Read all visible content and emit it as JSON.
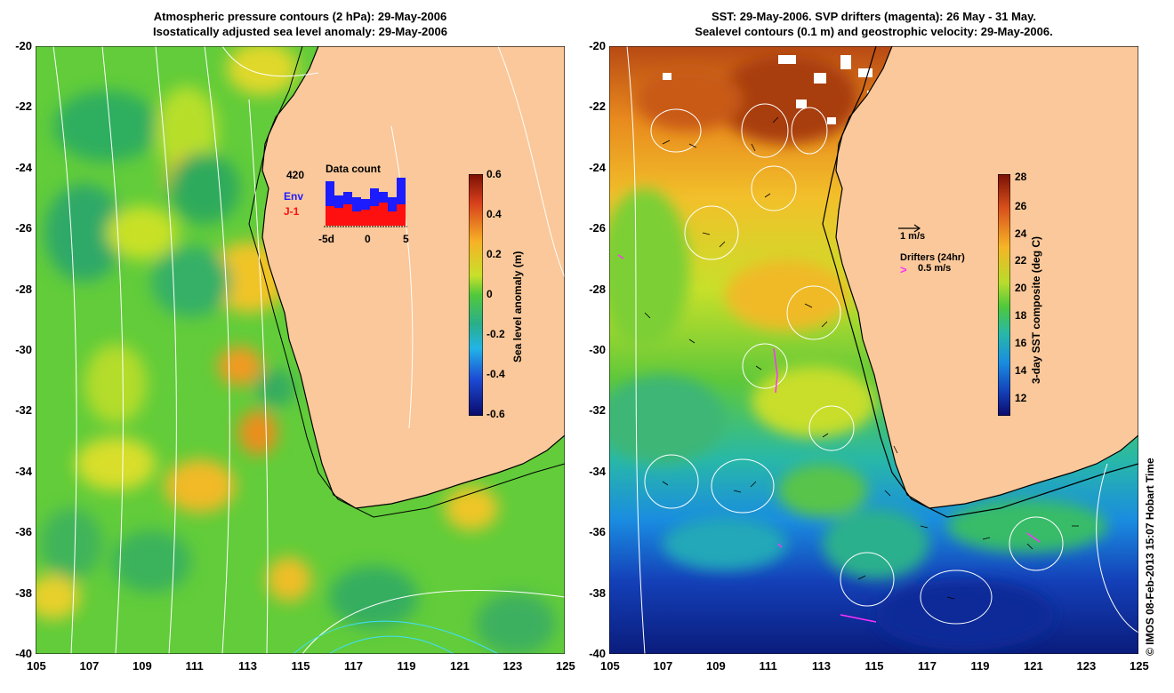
{
  "left_panel": {
    "title_line1": "Atmospheric pressure contours (2 hPa): 29-May-2006",
    "title_line2": "Isostatically adjusted sea level anomaly: 29-May-2006",
    "colorbar_label": "Sea level anomaly (m)",
    "colorbar_ticks": [
      "0.6",
      "0.4",
      "0.2",
      "0",
      "-0.2",
      "-0.4",
      "-0.6"
    ],
    "inset": {
      "count": "420",
      "title": "Data count",
      "env_label": "Env",
      "j1_label": "J-1",
      "x_ticks": [
        "-5d",
        "0",
        "5"
      ],
      "env_color": "#1c1cff",
      "j1_color": "#ff1010"
    }
  },
  "right_panel": {
    "title_line1": "SST: 29-May-2006. SVP drifters (magenta): 26 May - 31 May.",
    "title_line2": "Sealevel contours (0.1 m) and geostrophic velocity: 29-May-2006.",
    "colorbar_label": "3-day SST composite (deg C)",
    "colorbar_ticks": [
      "28",
      "26",
      "24",
      "22",
      "20",
      "18",
      "16",
      "14",
      "12"
    ],
    "scale_label": "1 m/s",
    "drifters_label": "Drifters (24hr)",
    "drifters_speed": "0.5 m/s",
    "drifter_color": "#ff30ff"
  },
  "axes": {
    "lat_ticks": [
      "-20",
      "-22",
      "-24",
      "-26",
      "-28",
      "-30",
      "-32",
      "-34",
      "-36",
      "-38",
      "-40"
    ],
    "lon_ticks": [
      "105",
      "107",
      "109",
      "111",
      "113",
      "115",
      "117",
      "119",
      "121",
      "123",
      "125"
    ]
  },
  "credit": "© IMOS 08-Feb-2013 15:07 Hobart Time",
  "colors": {
    "land": "#fac89a",
    "ocean_green": "#5ed03a"
  }
}
